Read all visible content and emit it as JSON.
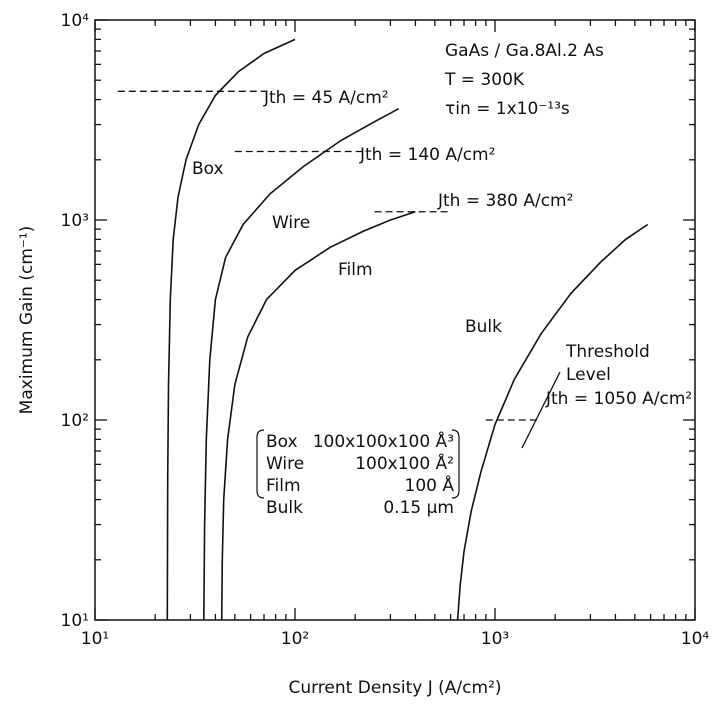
{
  "chart_data": {
    "type": "line",
    "x_scale": "log",
    "y_scale": "log",
    "xlim": [
      10,
      10000
    ],
    "ylim": [
      10,
      10000
    ],
    "xlabel": "Current Density J (A/cm²)",
    "ylabel": "Maximum Gain (cm⁻¹)",
    "x_ticks": [
      "10¹",
      "10²",
      "10³",
      "10⁴"
    ],
    "y_ticks": [
      "10¹",
      "10²",
      "10³",
      "10⁴"
    ],
    "grid": false,
    "header": {
      "line1": "GaAs / Ga.8Al.2 As",
      "line2": "T = 300K",
      "line3": "τin = 1x10⁻¹³s"
    },
    "series": [
      {
        "name": "Box",
        "x": [
          23,
          23.1,
          23.3,
          23.8,
          24.6,
          26,
          28.5,
          33,
          40,
          52,
          70,
          100
        ],
        "y": [
          10,
          50,
          150,
          400,
          800,
          1300,
          2000,
          3000,
          4200,
          5500,
          6800,
          8000
        ]
      },
      {
        "name": "Wire",
        "x": [
          35,
          35.3,
          36,
          37.5,
          40,
          45,
          55,
          75,
          110,
          170,
          250,
          330
        ],
        "y": [
          10,
          30,
          80,
          200,
          400,
          650,
          950,
          1350,
          1850,
          2500,
          3100,
          3600
        ]
      },
      {
        "name": "Film",
        "x": [
          43,
          43.3,
          44,
          46,
          50,
          58,
          72,
          100,
          150,
          220,
          300,
          400
        ],
        "y": [
          10,
          20,
          40,
          80,
          150,
          260,
          400,
          560,
          730,
          880,
          1000,
          1100
        ]
      },
      {
        "name": "Bulk",
        "x": [
          650,
          670,
          700,
          760,
          850,
          1000,
          1250,
          1700,
          2400,
          3400,
          4500,
          5800
        ],
        "y": [
          10,
          15,
          22,
          35,
          55,
          95,
          160,
          270,
          430,
          620,
          800,
          950
        ]
      }
    ],
    "thresholds": [
      {
        "label": "Jth = 45 A/cm²",
        "x": 45,
        "y": 4400,
        "x_from": 13
      },
      {
        "label": "Jth = 140 A/cm²",
        "x": 140,
        "y": 2200,
        "x_from": 50
      },
      {
        "label": "Jth = 380 A/cm²",
        "x": 380,
        "y": 1100,
        "x_from": 250
      },
      {
        "label": "Jth = 1050 A/cm²",
        "x": 1050,
        "y": 100,
        "x_from": 900
      }
    ],
    "threshold_level_label": [
      "Threshold",
      "Level"
    ],
    "dimensions_legend": [
      {
        "name": "Box",
        "size": "100x100x100 Å³"
      },
      {
        "name": "Wire",
        "size": "100x100 Å²"
      },
      {
        "name": "Film",
        "size": "100 Å"
      },
      {
        "name": "Bulk",
        "size": "0.15 µm"
      }
    ]
  }
}
